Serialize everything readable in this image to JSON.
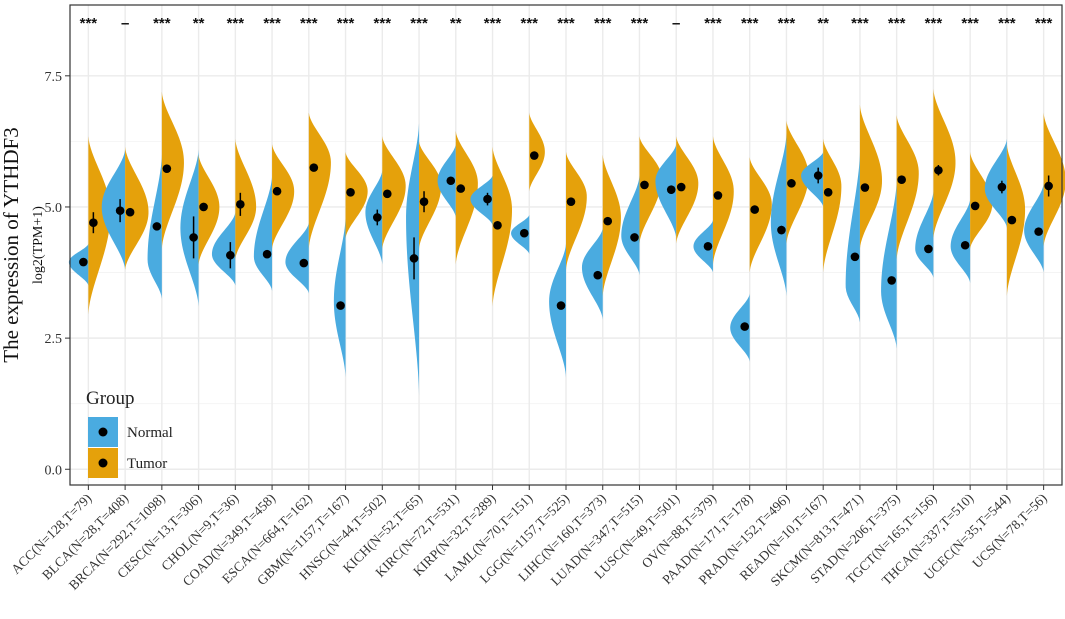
{
  "chart_data": {
    "type": "split-violin",
    "title": "",
    "ylabel": "The expression of YTHDF3",
    "ylabel_sub": "log2(TPM+1)",
    "ylim": [
      -0.3,
      8.85
    ],
    "yticks": [
      0.0,
      2.5,
      5.0,
      7.5
    ],
    "ytick_labels": [
      "0.0",
      "2.5",
      "5.0",
      "7.5"
    ],
    "legend": {
      "title": "Group",
      "position": "bottom-left",
      "items": [
        {
          "label": "Normal",
          "color": "#4AABE0"
        },
        {
          "label": "Tumor",
          "color": "#E5A10B"
        }
      ]
    },
    "colors": {
      "normal": "#4AABE0",
      "tumor": "#E5A10B",
      "panel_border": "#333333",
      "grid": "#EBEBEB"
    },
    "categories": [
      {
        "label": "ACC(N=128,T=79)",
        "sig": "***",
        "normal": {
          "mean": 3.95,
          "se": 0.06,
          "lo": 3.5,
          "hi": 4.3,
          "peak": 3.95,
          "w": 0.75
        },
        "tumor": {
          "mean": 4.7,
          "se": 0.2,
          "lo": 2.95,
          "hi": 6.35,
          "peak": 4.9,
          "w": 0.85
        }
      },
      {
        "label": "BLCA(N=28,T=408)",
        "sig": "–",
        "normal": {
          "mean": 4.93,
          "se": 0.22,
          "lo": 3.8,
          "hi": 6.1,
          "peak": 5.0,
          "w": 0.9
        },
        "tumor": {
          "mean": 4.9,
          "se": 0.07,
          "lo": 3.8,
          "hi": 6.15,
          "peak": 4.9,
          "w": 0.9
        }
      },
      {
        "label": "BRCA(N=292,T=1098)",
        "sig": "***",
        "normal": {
          "mean": 4.63,
          "se": 0.07,
          "lo": 3.25,
          "hi": 6.0,
          "peak": 4.0,
          "w": 0.55
        },
        "tumor": {
          "mean": 5.73,
          "se": 0.04,
          "lo": 4.2,
          "hi": 7.2,
          "peak": 5.85,
          "w": 0.85
        }
      },
      {
        "label": "CESC(N=13,T=306)",
        "sig": "**",
        "normal": {
          "mean": 4.42,
          "se": 0.4,
          "lo": 3.1,
          "hi": 6.1,
          "peak": 4.6,
          "w": 0.7
        },
        "tumor": {
          "mean": 5.0,
          "se": 0.07,
          "lo": 3.9,
          "hi": 6.0,
          "peak": 5.0,
          "w": 0.8
        }
      },
      {
        "label": "CHOL(N=9,T=36)",
        "sig": "***",
        "normal": {
          "mean": 4.08,
          "se": 0.25,
          "lo": 3.5,
          "hi": 4.9,
          "peak": 4.1,
          "w": 0.9
        },
        "tumor": {
          "mean": 5.05,
          "se": 0.22,
          "lo": 4.0,
          "hi": 6.3,
          "peak": 5.0,
          "w": 0.8
        }
      },
      {
        "label": "COAD(N=349,T=458)",
        "sig": "***",
        "normal": {
          "mean": 4.1,
          "se": 0.06,
          "lo": 3.4,
          "hi": 5.6,
          "peak": 4.05,
          "w": 0.7
        },
        "tumor": {
          "mean": 5.3,
          "se": 0.05,
          "lo": 4.2,
          "hi": 6.2,
          "peak": 5.3,
          "w": 0.85
        }
      },
      {
        "label": "ESCA(N=664,T=162)",
        "sig": "***",
        "normal": {
          "mean": 3.93,
          "se": 0.05,
          "lo": 3.35,
          "hi": 4.7,
          "peak": 3.95,
          "w": 0.9
        },
        "tumor": {
          "mean": 5.75,
          "se": 0.05,
          "lo": 4.2,
          "hi": 6.8,
          "peak": 5.85,
          "w": 0.85
        }
      },
      {
        "label": "GBM(N=1157,T=167)",
        "sig": "***",
        "normal": {
          "mean": 3.12,
          "se": 0.04,
          "lo": 1.75,
          "hi": 4.8,
          "peak": 3.2,
          "w": 0.45
        },
        "tumor": {
          "mean": 5.28,
          "se": 0.04,
          "lo": 4.4,
          "hi": 6.05,
          "peak": 5.3,
          "w": 0.85
        }
      },
      {
        "label": "HNSC(N=44,T=502)",
        "sig": "***",
        "normal": {
          "mean": 4.8,
          "se": 0.15,
          "lo": 3.9,
          "hi": 5.7,
          "peak": 4.9,
          "w": 0.65
        },
        "tumor": {
          "mean": 5.25,
          "se": 0.05,
          "lo": 4.2,
          "hi": 6.35,
          "peak": 5.4,
          "w": 0.9
        }
      },
      {
        "label": "KICH(N=52,T=65)",
        "sig": "***",
        "normal": {
          "mean": 4.02,
          "se": 0.4,
          "lo": 1.4,
          "hi": 6.6,
          "peak": 4.8,
          "w": 0.5
        },
        "tumor": {
          "mean": 5.1,
          "se": 0.2,
          "lo": 4.2,
          "hi": 6.25,
          "peak": 5.4,
          "w": 0.85
        }
      },
      {
        "label": "KIRC(N=72,T=531)",
        "sig": "**",
        "normal": {
          "mean": 5.5,
          "se": 0.06,
          "lo": 4.8,
          "hi": 6.2,
          "peak": 5.5,
          "w": 0.7
        },
        "tumor": {
          "mean": 5.35,
          "se": 0.05,
          "lo": 3.9,
          "hi": 6.45,
          "peak": 5.45,
          "w": 0.85
        }
      },
      {
        "label": "KIRP(N=32,T=289)",
        "sig": "***",
        "normal": {
          "mean": 5.15,
          "se": 0.12,
          "lo": 4.65,
          "hi": 5.6,
          "peak": 5.15,
          "w": 0.85
        },
        "tumor": {
          "mean": 4.65,
          "se": 0.05,
          "lo": 3.1,
          "hi": 6.15,
          "peak": 4.95,
          "w": 0.75
        }
      },
      {
        "label": "LAML(N=70,T=151)",
        "sig": "***",
        "normal": {
          "mean": 4.5,
          "se": 0.04,
          "lo": 4.1,
          "hi": 4.85,
          "peak": 4.5,
          "w": 0.7
        },
        "tumor": {
          "mean": 5.98,
          "se": 0.05,
          "lo": 5.3,
          "hi": 6.8,
          "peak": 6.05,
          "w": 0.6
        }
      },
      {
        "label": "LGG(N=1157,T=525)",
        "sig": "***",
        "normal": {
          "mean": 3.12,
          "se": 0.03,
          "lo": 1.75,
          "hi": 4.3,
          "peak": 3.2,
          "w": 0.65
        },
        "tumor": {
          "mean": 5.1,
          "se": 0.03,
          "lo": 3.8,
          "hi": 6.05,
          "peak": 5.2,
          "w": 0.8
        }
      },
      {
        "label": "LIHC(N=160,T=373)",
        "sig": "***",
        "normal": {
          "mean": 3.7,
          "se": 0.05,
          "lo": 2.85,
          "hi": 4.6,
          "peak": 3.85,
          "w": 0.8
        },
        "tumor": {
          "mean": 4.73,
          "se": 0.04,
          "lo": 3.3,
          "hi": 6.0,
          "peak": 4.8,
          "w": 0.7
        }
      },
      {
        "label": "LUAD(N=347,T=515)",
        "sig": "***",
        "normal": {
          "mean": 4.42,
          "se": 0.04,
          "lo": 3.7,
          "hi": 5.6,
          "peak": 4.45,
          "w": 0.7
        },
        "tumor": {
          "mean": 5.42,
          "se": 0.04,
          "lo": 4.3,
          "hi": 6.35,
          "peak": 5.55,
          "w": 0.85
        }
      },
      {
        "label": "LUSC(N=49,T=501)",
        "sig": "–",
        "normal": {
          "mean": 5.33,
          "se": 0.08,
          "lo": 4.4,
          "hi": 6.2,
          "peak": 5.5,
          "w": 0.8
        },
        "tumor": {
          "mean": 5.38,
          "se": 0.04,
          "lo": 4.3,
          "hi": 6.35,
          "peak": 5.45,
          "w": 0.85
        }
      },
      {
        "label": "OV(N=88,T=379)",
        "sig": "***",
        "normal": {
          "mean": 4.25,
          "se": 0.05,
          "lo": 3.75,
          "hi": 4.75,
          "peak": 4.25,
          "w": 0.75
        },
        "tumor": {
          "mean": 5.22,
          "se": 0.04,
          "lo": 3.9,
          "hi": 6.35,
          "peak": 5.3,
          "w": 0.8
        }
      },
      {
        "label": "PAAD(N=171,T=178)",
        "sig": "***",
        "normal": {
          "mean": 2.72,
          "se": 0.06,
          "lo": 2.05,
          "hi": 3.35,
          "peak": 2.7,
          "w": 0.75
        },
        "tumor": {
          "mean": 4.95,
          "se": 0.06,
          "lo": 3.75,
          "hi": 5.95,
          "peak": 5.05,
          "w": 0.85
        }
      },
      {
        "label": "PRAD(N=152,T=496)",
        "sig": "***",
        "normal": {
          "mean": 4.56,
          "se": 0.08,
          "lo": 3.3,
          "hi": 6.4,
          "peak": 4.7,
          "w": 0.6
        },
        "tumor": {
          "mean": 5.45,
          "se": 0.04,
          "lo": 4.3,
          "hi": 6.65,
          "peak": 5.6,
          "w": 0.85
        }
      },
      {
        "label": "READ(N=10,T=167)",
        "sig": "**",
        "normal": {
          "mean": 5.6,
          "se": 0.15,
          "lo": 5.0,
          "hi": 6.05,
          "peak": 5.6,
          "w": 0.85
        },
        "tumor": {
          "mean": 5.28,
          "se": 0.07,
          "lo": 3.75,
          "hi": 6.3,
          "peak": 5.4,
          "w": 0.7
        }
      },
      {
        "label": "SKCM(N=813,T=471)",
        "sig": "***",
        "normal": {
          "mean": 4.05,
          "se": 0.03,
          "lo": 2.8,
          "hi": 6.05,
          "peak": 3.5,
          "w": 0.55
        },
        "tumor": {
          "mean": 5.37,
          "se": 0.04,
          "lo": 4.2,
          "hi": 6.95,
          "peak": 5.5,
          "w": 0.85
        }
      },
      {
        "label": "STAD(N=206,T=375)",
        "sig": "***",
        "normal": {
          "mean": 3.6,
          "se": 0.07,
          "lo": 2.3,
          "hi": 5.5,
          "peak": 3.4,
          "w": 0.6
        },
        "tumor": {
          "mean": 5.52,
          "se": 0.04,
          "lo": 4.0,
          "hi": 6.75,
          "peak": 5.65,
          "w": 0.85
        }
      },
      {
        "label": "TGCT(N=165,T=156)",
        "sig": "***",
        "normal": {
          "mean": 4.2,
          "se": 0.05,
          "lo": 3.65,
          "hi": 5.3,
          "peak": 4.2,
          "w": 0.7
        },
        "tumor": {
          "mean": 5.7,
          "se": 0.1,
          "lo": 4.4,
          "hi": 7.25,
          "peak": 5.85,
          "w": 0.85
        }
      },
      {
        "label": "THCA(N=337,T=510)",
        "sig": "***",
        "normal": {
          "mean": 4.27,
          "se": 0.04,
          "lo": 3.55,
          "hi": 5.15,
          "peak": 4.25,
          "w": 0.75
        },
        "tumor": {
          "mean": 5.02,
          "se": 0.04,
          "lo": 4.2,
          "hi": 6.05,
          "peak": 5.05,
          "w": 0.85
        }
      },
      {
        "label": "UCEC(N=35,T=544)",
        "sig": "***",
        "normal": {
          "mean": 5.38,
          "se": 0.12,
          "lo": 4.6,
          "hi": 6.3,
          "peak": 5.35,
          "w": 0.85
        },
        "tumor": {
          "mean": 4.75,
          "se": 0.04,
          "lo": 3.3,
          "hi": 6.2,
          "peak": 4.95,
          "w": 0.7
        }
      },
      {
        "label": "UCS(N=78,T=56)",
        "sig": "***",
        "normal": {
          "mean": 4.53,
          "se": 0.06,
          "lo": 3.75,
          "hi": 5.45,
          "peak": 4.55,
          "w": 0.75
        },
        "tumor": {
          "mean": 5.4,
          "se": 0.2,
          "lo": 4.25,
          "hi": 6.8,
          "peak": 5.5,
          "w": 0.85
        }
      }
    ]
  }
}
